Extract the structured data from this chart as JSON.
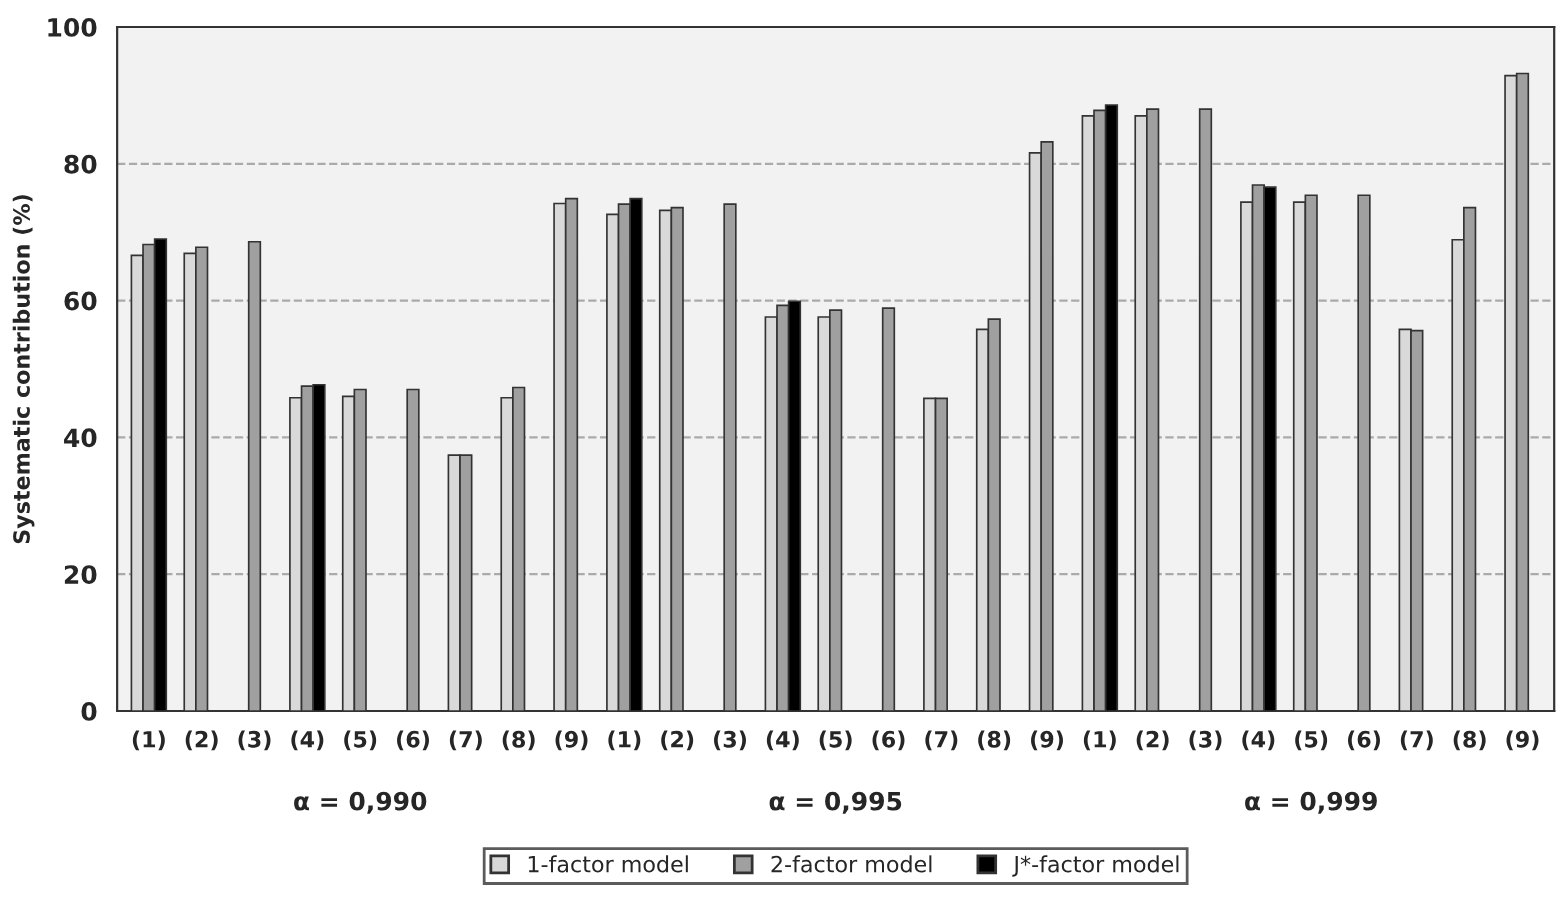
{
  "chart_data": {
    "type": "bar",
    "ylabel": "Systematic contribution (%)",
    "categories": [
      "(1)",
      "(2)",
      "(3)",
      "(4)",
      "(5)",
      "(6)",
      "(7)",
      "(8)",
      "(9)",
      "(1)",
      "(2)",
      "(3)",
      "(4)",
      "(5)",
      "(6)",
      "(7)",
      "(8)",
      "(9)",
      "(1)",
      "(2)",
      "(3)",
      "(4)",
      "(5)",
      "(6)",
      "(7)",
      "(8)",
      "(9)"
    ],
    "series": [
      {
        "name": "1-factor model",
        "color": "#d9d9d9",
        "values": [
          66.6,
          66.9,
          null,
          45.8,
          46.0,
          null,
          37.4,
          45.8,
          74.2,
          72.6,
          73.2,
          null,
          57.6,
          57.6,
          null,
          45.7,
          55.8,
          81.6,
          87.0,
          87.0,
          null,
          74.4,
          74.4,
          null,
          55.8,
          68.9,
          92.9
        ]
      },
      {
        "name": "2-factor model",
        "color": "#a0a0a0",
        "values": [
          68.2,
          67.8,
          68.6,
          47.5,
          47.0,
          47.0,
          37.4,
          47.3,
          74.9,
          74.1,
          73.6,
          74.1,
          59.3,
          58.6,
          58.9,
          45.7,
          57.3,
          83.2,
          87.8,
          88.0,
          88.0,
          76.9,
          75.4,
          75.4,
          55.6,
          73.6,
          93.2
        ]
      },
      {
        "name": "J*-factor model",
        "color": "#000000",
        "values": [
          69.0,
          null,
          null,
          47.7,
          null,
          null,
          null,
          null,
          null,
          74.9,
          null,
          null,
          59.9,
          null,
          null,
          null,
          null,
          null,
          88.6,
          null,
          null,
          76.6,
          null,
          null,
          null,
          null,
          null
        ]
      }
    ],
    "annotations": [
      "α = 0,990",
      "α = 0,995",
      "α = 0,999"
    ],
    "ylim": [
      0,
      100
    ],
    "yticks": [
      0,
      20,
      40,
      60,
      80,
      100
    ],
    "grid": "y",
    "legend": "bottom"
  }
}
